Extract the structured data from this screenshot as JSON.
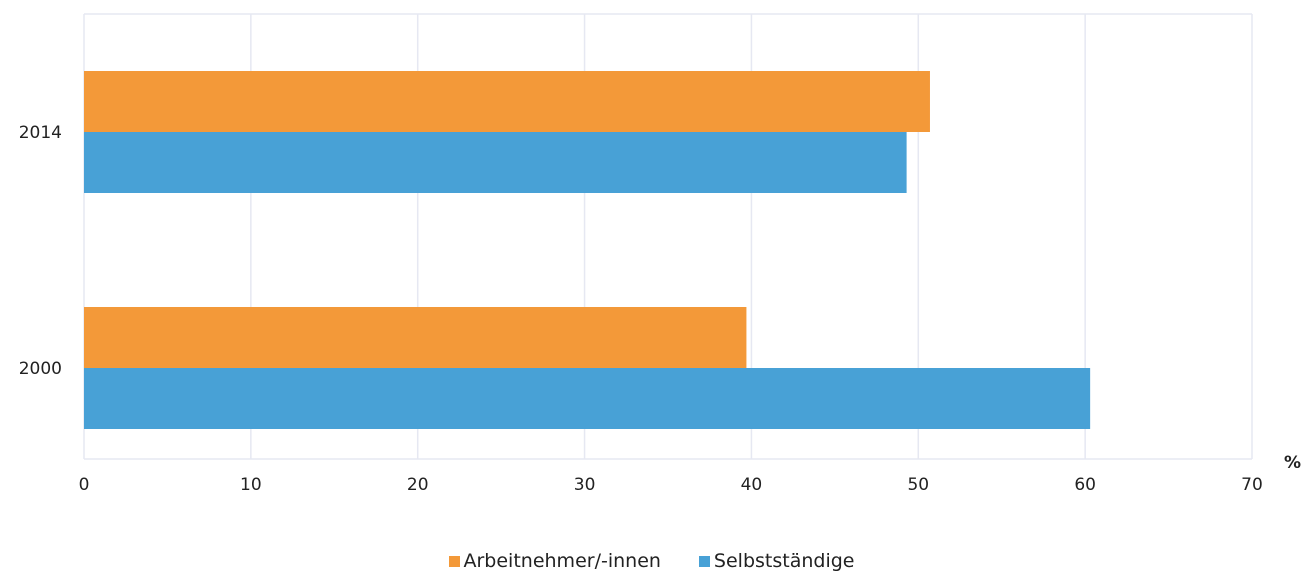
{
  "chart_data": {
    "type": "bar",
    "orientation": "horizontal",
    "categories": [
      "2014",
      "2000"
    ],
    "series": [
      {
        "name": "Arbeitnehmer/-innen",
        "values": [
          50.7,
          39.7
        ],
        "color": "#F39939"
      },
      {
        "name": "Selbstständige",
        "values": [
          49.3,
          60.3
        ],
        "color": "#48A1D6"
      }
    ],
    "xlim": [
      0,
      70
    ],
    "xticks": [
      "0",
      "10",
      "20",
      "30",
      "40",
      "50",
      "60",
      "70"
    ],
    "unit": "%",
    "grid": true,
    "legend_position": "bottom"
  }
}
